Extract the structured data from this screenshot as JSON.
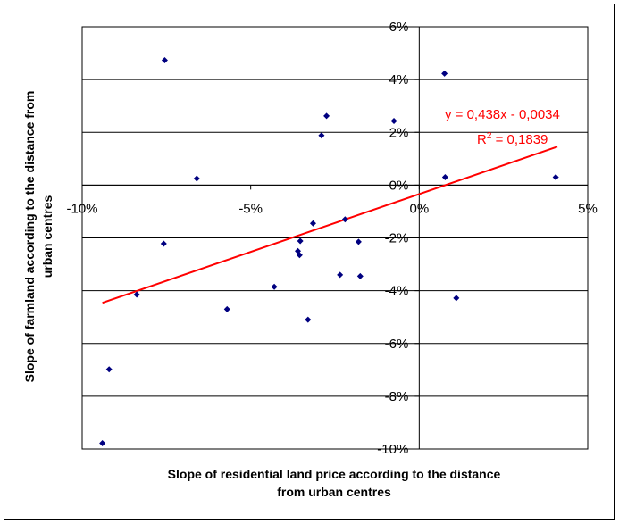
{
  "chart_data": {
    "type": "scatter",
    "xlabel_lines": [
      "Slope of residential land price according to the distance",
      "from urban centres"
    ],
    "ylabel_lines": [
      "Slope of farmland according to the distance from",
      "urban centres"
    ],
    "xlim": [
      -0.1,
      0.05
    ],
    "ylim": [
      -0.1,
      0.06
    ],
    "x_ticks": [
      {
        "value": -0.1,
        "label": "-10%"
      },
      {
        "value": -0.05,
        "label": "-5%"
      },
      {
        "value": 0.0,
        "label": "0%"
      },
      {
        "value": 0.05,
        "label": "5%"
      }
    ],
    "y_ticks": [
      {
        "value": 0.06,
        "label": "6%"
      },
      {
        "value": 0.04,
        "label": "4%"
      },
      {
        "value": 0.02,
        "label": "2%"
      },
      {
        "value": 0.0,
        "label": "0%"
      },
      {
        "value": -0.02,
        "label": "-2%"
      },
      {
        "value": -0.04,
        "label": "-4%"
      },
      {
        "value": -0.06,
        "label": "-6%"
      },
      {
        "value": -0.08,
        "label": "-8%"
      },
      {
        "value": -0.1,
        "label": "-10%"
      }
    ],
    "grid": "horizontal",
    "point_color": "#000080",
    "trend_color": "#ff0000",
    "points": [
      {
        "x": -0.0755,
        "y": 0.0473
      },
      {
        "x": -0.066,
        "y": 0.0025
      },
      {
        "x": -0.0758,
        "y": -0.0222
      },
      {
        "x": -0.0838,
        "y": -0.0415
      },
      {
        "x": -0.092,
        "y": -0.0698
      },
      {
        "x": -0.094,
        "y": -0.0978
      },
      {
        "x": -0.057,
        "y": -0.047
      },
      {
        "x": -0.043,
        "y": -0.0385
      },
      {
        "x": -0.036,
        "y": -0.025
      },
      {
        "x": -0.0355,
        "y": -0.0265
      },
      {
        "x": -0.0353,
        "y": -0.0212
      },
      {
        "x": -0.0315,
        "y": -0.0145
      },
      {
        "x": -0.033,
        "y": -0.051
      },
      {
        "x": -0.029,
        "y": 0.0188
      },
      {
        "x": -0.0275,
        "y": 0.0262
      },
      {
        "x": -0.0235,
        "y": -0.034
      },
      {
        "x": -0.022,
        "y": -0.013
      },
      {
        "x": -0.018,
        "y": -0.0215
      },
      {
        "x": -0.0175,
        "y": -0.0345
      },
      {
        "x": -0.0075,
        "y": 0.0243
      },
      {
        "x": 0.0075,
        "y": 0.0423
      },
      {
        "x": 0.0077,
        "y": 0.003
      },
      {
        "x": 0.011,
        "y": -0.0428
      },
      {
        "x": 0.0405,
        "y": 0.003
      }
    ],
    "trendline": {
      "slope": 0.438,
      "intercept": -0.0034,
      "x_range": [
        -0.094,
        0.041
      ]
    },
    "equation": {
      "text": "y = 0,438x - 0,0034",
      "r2_prefix": "R",
      "r2_sup": "2",
      "r2_suffix": " = 0,1839"
    }
  }
}
